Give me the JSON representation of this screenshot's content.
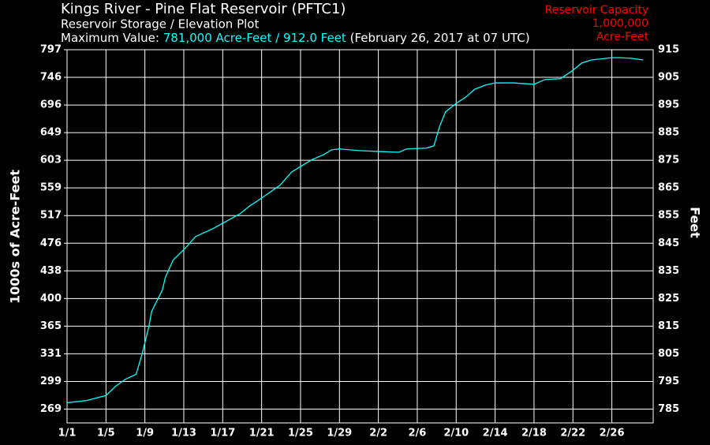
{
  "chart_data": {
    "type": "line",
    "title": "Kings River - Pine Flat Reservoir (PFTC1)",
    "subtitle": "Reservoir Storage / Elevation Plot",
    "max_label": "Maximum Value:",
    "max_value": "781,000 Acre-Feet / 912.0 Feet",
    "max_date": "(February 26, 2017 at 07 UTC)",
    "capacity": [
      "Reservoir Capacity",
      "1,000,000",
      "Acre-Feet"
    ],
    "ylabel": "1000s of Acre-Feet",
    "y2label": "Feet",
    "x": [
      0,
      2.0,
      4.0,
      5.0,
      6.0,
      7.1,
      7.7,
      8.4,
      8.7,
      9.8,
      10.1,
      10.9,
      12.2,
      13.2,
      15.0,
      16.2,
      17.8,
      18.7,
      19.9,
      21.9,
      23.1,
      25.1,
      26.4,
      27.2,
      28.0,
      30.0,
      32.0,
      34.1,
      34.9,
      36.9,
      37.7,
      38.3,
      38.9,
      40.0,
      41.0,
      41.9,
      43.0,
      44.0,
      45.8,
      48.0,
      49.1,
      50.7,
      51.9,
      52.9,
      53.9,
      56.0,
      56.8,
      58.0,
      59.2
    ],
    "series": [
      {
        "color": "#00ffff",
        "axis": "y2",
        "values": [
          787.3,
          788.1,
          789.9,
          793.3,
          795.8,
          797.6,
          804.7,
          814.7,
          820.4,
          828.1,
          832.6,
          838.9,
          843.4,
          847.4,
          850.3,
          852.6,
          855.7,
          858.3,
          861.1,
          866.0,
          870.8,
          875.1,
          877.1,
          878.8,
          879.1,
          878.5,
          878.2,
          877.9,
          879.1,
          879.4,
          880.2,
          887.3,
          892.5,
          895.6,
          897.9,
          900.7,
          902.2,
          903.0,
          903.0,
          902.5,
          904.2,
          904.5,
          907.3,
          910.2,
          911.3,
          912.1,
          912.1,
          911.9,
          911.3
        ]
      }
    ],
    "xlim": [
      0,
      60.25
    ],
    "xticks": [
      {
        "value": 0,
        "label": "1/1"
      },
      {
        "value": 4,
        "label": "1/5"
      },
      {
        "value": 8,
        "label": "1/9"
      },
      {
        "value": 12,
        "label": "1/13"
      },
      {
        "value": 16,
        "label": "1/17"
      },
      {
        "value": 20,
        "label": "1/21"
      },
      {
        "value": 24,
        "label": "1/25"
      },
      {
        "value": 28,
        "label": "1/29"
      },
      {
        "value": 32,
        "label": "2/2"
      },
      {
        "value": 36,
        "label": "2/6"
      },
      {
        "value": 40,
        "label": "2/10"
      },
      {
        "value": 44,
        "label": "2/14"
      },
      {
        "value": 48,
        "label": "2/18"
      },
      {
        "value": 52,
        "label": "2/22"
      },
      {
        "value": 56,
        "label": "2/26"
      }
    ],
    "ylim": [
      254,
      797
    ],
    "yticks": [
      269,
      299,
      331,
      365,
      400,
      438,
      476,
      517,
      559,
      603,
      649,
      696,
      746,
      797
    ],
    "y2lim": [
      780,
      915
    ],
    "y2ticks": [
      785,
      795,
      805,
      815,
      825,
      835,
      845,
      855,
      865,
      875,
      885,
      895,
      905,
      915
    ],
    "grid": true
  }
}
